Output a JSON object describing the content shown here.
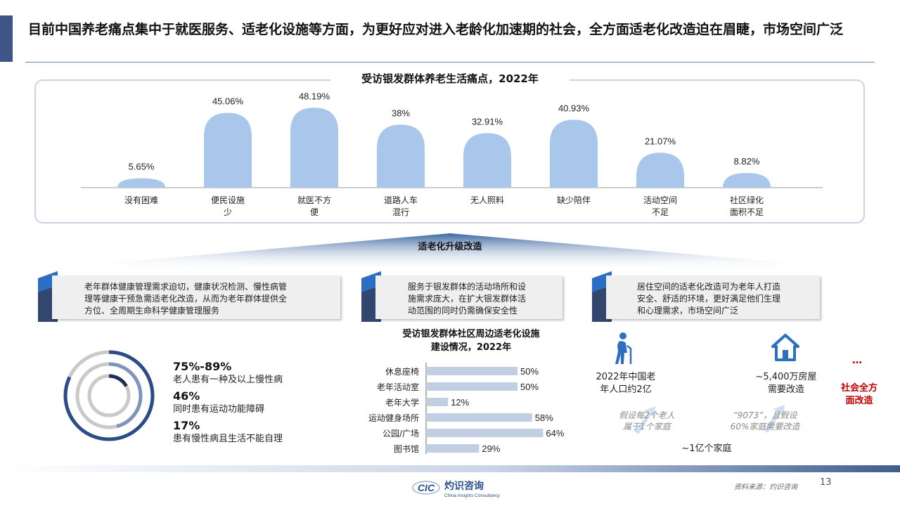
{
  "title": "目前中国养老痛点集中于就医服务、适老化设施等方面，为更好应对进入老龄化加速期的社会，全方面适老化改造迫在眉睫，市场空间广泛",
  "colors": {
    "accent": "#3d5687",
    "bar": "#a9c7ea",
    "bar_mid": "#c2cfe3",
    "red": "#c00000"
  },
  "chart_data": [
    {
      "type": "bar",
      "title": "受访银发群体养老生活痛点，2022年",
      "categories": [
        "没有困难",
        "便民设施少",
        "就医不方便",
        "道路人车混行",
        "无人照料",
        "缺少陪伴",
        "活动空间不足",
        "社区绿化面积不足"
      ],
      "category_lines": [
        [
          "没有困难"
        ],
        [
          "便民设施",
          "少"
        ],
        [
          "就医不方",
          "便"
        ],
        [
          "道路人车",
          "混行"
        ],
        [
          "无人照料"
        ],
        [
          "缺少陪伴"
        ],
        [
          "活动空间",
          "不足"
        ],
        [
          "社区绿化",
          "面积不足"
        ]
      ],
      "values": [
        5.65,
        45.06,
        48.19,
        38,
        32.91,
        40.93,
        21.07,
        8.82
      ],
      "value_labels": [
        "5.65%",
        "45.06%",
        "48.19%",
        "38%",
        "32.91%",
        "40.93%",
        "21.07%",
        "8.82%"
      ],
      "ylim": [
        0,
        50
      ]
    },
    {
      "type": "bar",
      "orientation": "horizontal",
      "title": "受访银发群体社区周边适老化设施建设情况，2022年",
      "title_lines": [
        "受访银发群体社区周边适老化设施",
        "建设情况，2022年"
      ],
      "categories": [
        "休息座椅",
        "老年活动室",
        "老年大学",
        "运动健身场所",
        "公园/广场",
        "图书馆"
      ],
      "values": [
        50,
        50,
        12,
        58,
        64,
        29
      ],
      "value_labels": [
        "50%",
        "50%",
        "12%",
        "58%",
        "64%",
        "29%"
      ],
      "xlim": [
        0,
        100
      ]
    }
  ],
  "fan_label": "适老化升级改造",
  "cards": [
    "老年群体健康管理需求迫切，健康状况检测、慢性病管理等健康干预急需适老化改造，从而为老年群体提供全方位、全周期生命科学健康管理服务",
    "服务于银发群体的活动场所和设施需求庞大，在扩大银发群体活动范围的同时仍需确保安全性",
    "居住空间的适老化改造可为老年人打造安全、舒适的环境，更好满足他们生理和心理需求，市场空间广泛"
  ],
  "card_lines": [
    [
      "老年群体健康管理需求迫切，健康状况检测、慢性病管",
      "理等健康干预急需适老化改造，从而为老年群体提供全",
      "方位、全周期生命科学健康管理服务"
    ],
    [
      "服务于银发群体的活动场所和设",
      "施需求庞大，在扩大银发群体活",
      "动范围的同时仍需确保安全性"
    ],
    [
      "居住空间的适老化改造可为老年人打造",
      "安全、舒适的环境，更好满足他们生理",
      "和心理需求，市场空间广泛"
    ]
  ],
  "health_stats": [
    {
      "value": "75%-89%",
      "desc": "老人患有一种及以上慢性病",
      "fraction": 0.82
    },
    {
      "value": "46%",
      "desc": "同时患有运动功能障碍",
      "fraction": 0.46
    },
    {
      "value": "17%",
      "desc": "患有慢性病且生活不能自理",
      "fraction": 0.17
    }
  ],
  "housing": {
    "population_lines": [
      "2022年中国老",
      "年人口约2亿"
    ],
    "houses_lines": [
      "~5,400万房屋",
      "需要改造"
    ],
    "assumption_lines": [
      "假设每2个老人",
      "属于1个家庭"
    ],
    "rule_lines": [
      "“9073”，且假设",
      "60%家庭需要改造"
    ],
    "families": "~1亿个家庭",
    "ellipsis": "…",
    "society_lines": [
      "社会全方",
      "面改造"
    ]
  },
  "icons": [
    "elderly-person-icon",
    "house-icon",
    "card-tab-icon"
  ],
  "logo": {
    "mark": "CIC",
    "name": "灼识咨询",
    "english": "China Insights Consultancy"
  },
  "source": "资料来源：灼识咨询",
  "page_number": "13"
}
